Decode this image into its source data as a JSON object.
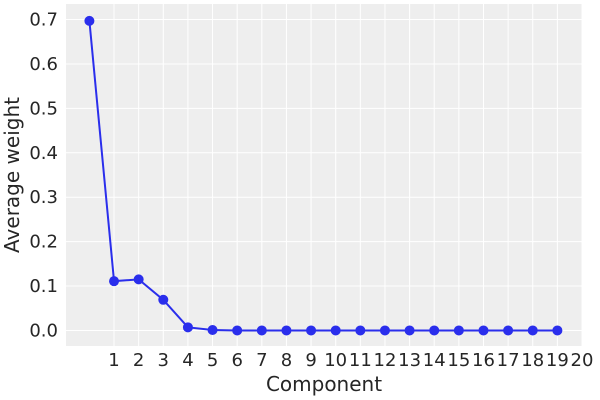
{
  "chart_data": {
    "type": "line",
    "title": "",
    "xlabel": "Component",
    "ylabel": "Average weight",
    "x": [
      0,
      1,
      2,
      3,
      4,
      5,
      6,
      7,
      8,
      9,
      10,
      11,
      12,
      13,
      14,
      15,
      16,
      17,
      18,
      19
    ],
    "series": [
      {
        "values": [
          0.697,
          0.111,
          0.115,
          0.069,
          0.007,
          0.001,
          0.0,
          0.0,
          0.0,
          0.0,
          0.0,
          0.0,
          0.0,
          0.0,
          0.0,
          0.0,
          0.0,
          0.0,
          0.0,
          0.0
        ],
        "color": "#2a2eec"
      }
    ],
    "xticks": [
      1,
      2,
      3,
      4,
      5,
      6,
      7,
      8,
      9,
      10,
      11,
      12,
      13,
      14,
      15,
      16,
      17,
      18,
      19,
      20
    ],
    "xtick_labels": [
      "1",
      "2",
      "3",
      "4",
      "5",
      "6",
      "7",
      "8",
      "9",
      "10",
      "11",
      "12",
      "13",
      "14",
      "15",
      "16",
      "17",
      "18",
      "19",
      "20"
    ],
    "yticks": [
      0.0,
      0.1,
      0.2,
      0.3,
      0.4,
      0.5,
      0.6,
      0.7
    ],
    "ytick_labels": [
      "0.0",
      "0.1",
      "0.2",
      "0.3",
      "0.4",
      "0.5",
      "0.6",
      "0.7"
    ],
    "xlim": [
      -0.95,
      20
    ],
    "ylim": [
      -0.035,
      0.735
    ],
    "grid": true,
    "background": "#eeeeee",
    "grid_color": "#ffffff"
  }
}
